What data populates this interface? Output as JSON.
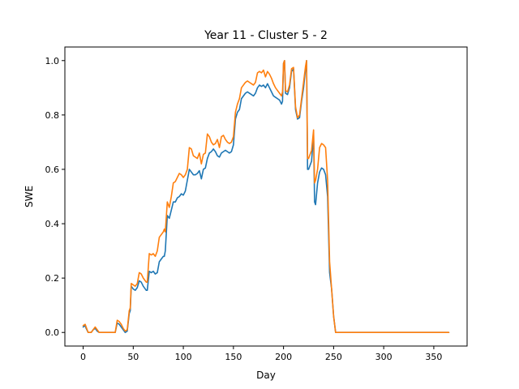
{
  "chart_data": {
    "type": "line",
    "title": "Year 11 - Cluster 5 - 2",
    "xlabel": "Day",
    "ylabel": "SWE",
    "xlim": [
      -18.25,
      383.25
    ],
    "ylim": [
      -0.05,
      1.05
    ],
    "xticks": [
      0,
      50,
      100,
      150,
      200,
      250,
      300,
      350
    ],
    "yticks": [
      0.0,
      0.2,
      0.4,
      0.6,
      0.8,
      1.0
    ],
    "ytick_labels": [
      "0.0",
      "0.2",
      "0.4",
      "0.6",
      "0.8",
      "1.0"
    ],
    "grid": false,
    "legend": "none",
    "series": [
      {
        "color": "#1f77b4",
        "x": [
          0,
          2,
          3,
          5,
          8,
          10,
          12,
          14,
          16,
          18,
          20,
          25,
          30,
          32,
          34,
          36,
          38,
          40,
          42,
          44,
          46,
          47,
          48,
          50,
          52,
          54,
          56,
          58,
          60,
          62,
          63,
          64,
          66,
          68,
          70,
          72,
          74,
          76,
          78,
          80,
          81,
          82,
          84,
          86,
          88,
          90,
          92,
          94,
          96,
          98,
          100,
          102,
          104,
          106,
          108,
          110,
          112,
          114,
          116,
          118,
          120,
          122,
          124,
          126,
          128,
          130,
          132,
          134,
          136,
          138,
          140,
          142,
          144,
          146,
          148,
          150,
          152,
          154,
          156,
          158,
          160,
          162,
          164,
          166,
          168,
          170,
          172,
          174,
          176,
          178,
          180,
          182,
          184,
          186,
          188,
          190,
          192,
          194,
          196,
          198,
          199,
          200,
          201,
          202,
          204,
          206,
          208,
          210,
          212,
          214,
          216,
          218,
          220,
          222,
          223,
          224,
          225,
          226,
          228,
          230,
          231,
          232,
          234,
          236,
          238,
          240,
          242,
          244,
          246,
          248,
          250,
          252,
          253,
          256,
          260,
          270,
          280,
          300,
          320,
          340,
          365
        ],
        "y": [
          0.02,
          0.025,
          0.015,
          0.0,
          0.0,
          0.01,
          0.015,
          0.005,
          0.0,
          0.0,
          0.0,
          0.0,
          0.0,
          0.0,
          0.035,
          0.03,
          0.02,
          0.01,
          0.0,
          0.005,
          0.07,
          0.08,
          0.17,
          0.16,
          0.155,
          0.165,
          0.19,
          0.185,
          0.17,
          0.16,
          0.155,
          0.155,
          0.225,
          0.22,
          0.225,
          0.215,
          0.22,
          0.26,
          0.27,
          0.28,
          0.28,
          0.3,
          0.43,
          0.42,
          0.45,
          0.48,
          0.48,
          0.495,
          0.5,
          0.51,
          0.505,
          0.52,
          0.56,
          0.6,
          0.59,
          0.58,
          0.58,
          0.585,
          0.595,
          0.565,
          0.6,
          0.605,
          0.64,
          0.66,
          0.665,
          0.675,
          0.665,
          0.65,
          0.645,
          0.66,
          0.665,
          0.67,
          0.665,
          0.66,
          0.665,
          0.69,
          0.785,
          0.81,
          0.82,
          0.86,
          0.87,
          0.88,
          0.885,
          0.88,
          0.875,
          0.87,
          0.88,
          0.9,
          0.91,
          0.905,
          0.91,
          0.9,
          0.915,
          0.9,
          0.885,
          0.87,
          0.865,
          0.86,
          0.855,
          0.84,
          0.85,
          0.99,
          1.0,
          0.88,
          0.875,
          0.9,
          0.96,
          0.97,
          0.82,
          0.785,
          0.79,
          0.85,
          0.9,
          0.97,
          1.0,
          0.6,
          0.6,
          0.61,
          0.63,
          0.73,
          0.48,
          0.47,
          0.55,
          0.59,
          0.605,
          0.6,
          0.58,
          0.5,
          0.22,
          0.16,
          0.06,
          0.0,
          0.0,
          0.0,
          0.0,
          0.0,
          0.0,
          0.0,
          0.0,
          0.0,
          0.0
        ]
      },
      {
        "color": "#ff7f0e",
        "x": [
          0,
          2,
          3,
          5,
          8,
          10,
          12,
          14,
          16,
          18,
          20,
          25,
          30,
          32,
          34,
          36,
          38,
          40,
          42,
          44,
          46,
          47,
          48,
          50,
          52,
          54,
          56,
          58,
          60,
          62,
          63,
          64,
          66,
          68,
          70,
          72,
          74,
          76,
          78,
          80,
          81,
          82,
          84,
          86,
          88,
          90,
          92,
          94,
          96,
          98,
          100,
          102,
          104,
          106,
          108,
          110,
          112,
          114,
          116,
          118,
          120,
          122,
          124,
          126,
          128,
          130,
          132,
          134,
          136,
          138,
          140,
          142,
          144,
          146,
          148,
          150,
          152,
          154,
          156,
          158,
          160,
          162,
          164,
          166,
          168,
          170,
          172,
          174,
          176,
          178,
          180,
          182,
          184,
          186,
          188,
          190,
          192,
          194,
          196,
          198,
          199,
          200,
          201,
          202,
          204,
          206,
          208,
          210,
          212,
          214,
          216,
          218,
          220,
          222,
          223,
          224,
          225,
          226,
          228,
          230,
          231,
          232,
          234,
          236,
          238,
          240,
          242,
          244,
          246,
          248,
          250,
          252,
          253,
          256,
          260,
          270,
          280,
          300,
          320,
          340,
          365
        ],
        "y": [
          0.025,
          0.03,
          0.02,
          0.0,
          0.0,
          0.01,
          0.02,
          0.01,
          0.0,
          0.0,
          0.0,
          0.0,
          0.0,
          0.0,
          0.045,
          0.04,
          0.03,
          0.015,
          0.005,
          0.01,
          0.08,
          0.09,
          0.18,
          0.175,
          0.17,
          0.18,
          0.22,
          0.215,
          0.2,
          0.19,
          0.185,
          0.185,
          0.29,
          0.285,
          0.29,
          0.28,
          0.3,
          0.35,
          0.36,
          0.37,
          0.38,
          0.37,
          0.48,
          0.46,
          0.5,
          0.55,
          0.555,
          0.57,
          0.585,
          0.58,
          0.57,
          0.58,
          0.6,
          0.68,
          0.675,
          0.65,
          0.645,
          0.64,
          0.66,
          0.62,
          0.655,
          0.66,
          0.73,
          0.72,
          0.7,
          0.69,
          0.695,
          0.71,
          0.68,
          0.72,
          0.725,
          0.71,
          0.7,
          0.695,
          0.7,
          0.72,
          0.81,
          0.84,
          0.86,
          0.9,
          0.91,
          0.92,
          0.925,
          0.92,
          0.915,
          0.91,
          0.92,
          0.955,
          0.96,
          0.955,
          0.965,
          0.94,
          0.96,
          0.95,
          0.935,
          0.915,
          0.9,
          0.89,
          0.88,
          0.87,
          0.885,
          0.99,
          1.0,
          0.89,
          0.885,
          0.91,
          0.97,
          0.975,
          0.83,
          0.79,
          0.8,
          0.86,
          0.92,
          0.98,
          1.0,
          0.64,
          0.64,
          0.65,
          0.67,
          0.745,
          0.55,
          0.56,
          0.6,
          0.68,
          0.695,
          0.69,
          0.68,
          0.56,
          0.26,
          0.16,
          0.06,
          0.0,
          0.0,
          0.0,
          0.0,
          0.0,
          0.0,
          0.0,
          0.0,
          0.0,
          0.0
        ]
      }
    ]
  }
}
